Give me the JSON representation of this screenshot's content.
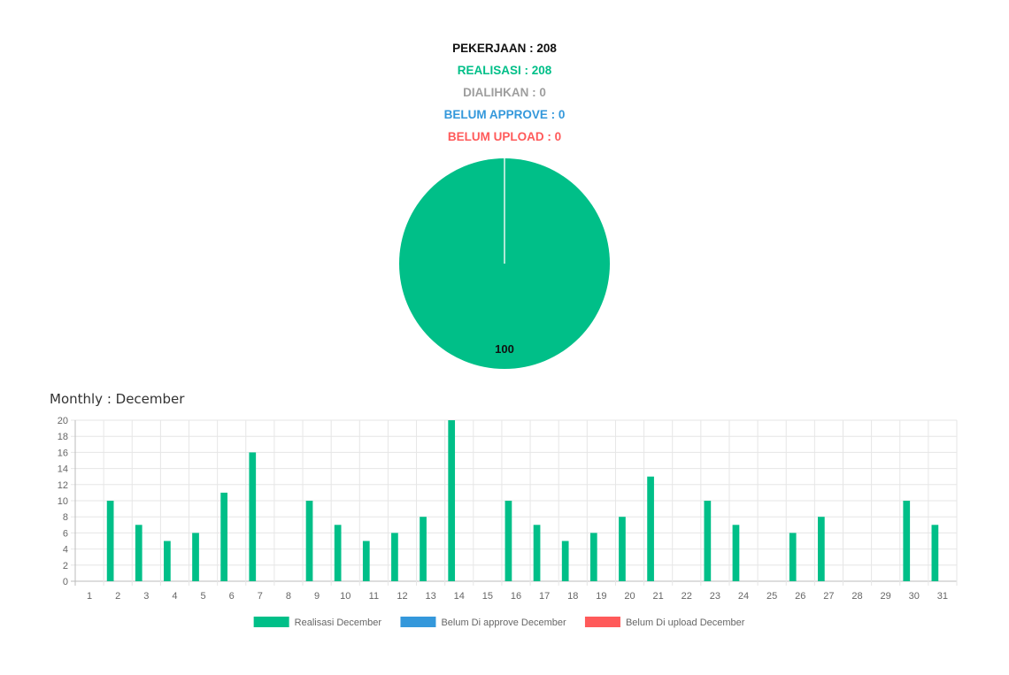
{
  "stats": {
    "pekerjaan": "PEKERJAAN : 208",
    "realisasi": "REALISASI : 208",
    "dialihkan": "DIALIHKAN : 0",
    "belum_approve": "BELUM APPROVE : 0",
    "belum_upload": "BELUM UPLOAD : 0"
  },
  "colors": {
    "realisasi": "#00bf88",
    "dialihkan": "#9e9e9e",
    "belum_approve": "#3498db",
    "belum_upload": "#ff5a5a",
    "pekerjaan": "#111111"
  },
  "monthly_title": "Monthly : December",
  "chart_data": [
    {
      "type": "pie",
      "slices": [
        {
          "name": "Realisasi",
          "value": 100,
          "color": "#00bf88"
        }
      ],
      "data_labels": [
        "100"
      ]
    },
    {
      "type": "bar",
      "categories": [
        "1",
        "2",
        "3",
        "4",
        "5",
        "6",
        "7",
        "8",
        "9",
        "10",
        "11",
        "12",
        "13",
        "14",
        "15",
        "16",
        "17",
        "18",
        "19",
        "20",
        "21",
        "22",
        "23",
        "24",
        "25",
        "26",
        "27",
        "28",
        "29",
        "30",
        "31"
      ],
      "series": [
        {
          "name": "Realisasi December",
          "color": "#00bf88",
          "values": [
            0,
            10,
            7,
            5,
            6,
            11,
            16,
            0,
            10,
            7,
            5,
            6,
            8,
            20,
            0,
            10,
            7,
            5,
            6,
            8,
            13,
            0,
            10,
            7,
            0,
            6,
            8,
            0,
            0,
            10,
            7
          ]
        },
        {
          "name": "Belum Di approve December",
          "color": "#3498db",
          "values": [
            0,
            0,
            0,
            0,
            0,
            0,
            0,
            0,
            0,
            0,
            0,
            0,
            0,
            0,
            0,
            0,
            0,
            0,
            0,
            0,
            0,
            0,
            0,
            0,
            0,
            0,
            0,
            0,
            0,
            0,
            0
          ]
        },
        {
          "name": "Belum Di upload December",
          "color": "#ff5a5a",
          "values": [
            0,
            0,
            0,
            0,
            0,
            0,
            0,
            0,
            0,
            0,
            0,
            0,
            0,
            0,
            0,
            0,
            0,
            0,
            0,
            0,
            0,
            0,
            0,
            0,
            0,
            0,
            0,
            0,
            0,
            0,
            0
          ]
        }
      ],
      "ylim": [
        0,
        20
      ],
      "yticks": [
        0,
        2,
        4,
        6,
        8,
        10,
        12,
        14,
        16,
        18,
        20
      ],
      "grid": true,
      "legend": "bottom"
    }
  ]
}
